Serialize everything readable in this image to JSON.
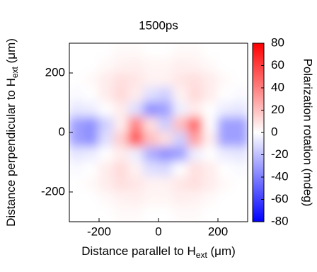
{
  "chart_data": {
    "type": "heatmap",
    "title": "1500ps",
    "xlabel": [
      "Distance parallel to H",
      "ext",
      " (μm)"
    ],
    "ylabel": [
      "Distance perpendicular to H",
      "ext",
      " (μm)"
    ],
    "colorbar_label": "Polarization rotation (mdeg)",
    "x": [
      -275,
      -225,
      -175,
      -125,
      -75,
      -25,
      25,
      75,
      125,
      175,
      225,
      275
    ],
    "y": [
      275,
      225,
      175,
      125,
      75,
      25,
      -25,
      -75,
      -125,
      -175,
      -225,
      -275
    ],
    "z": [
      [
        0,
        0,
        0,
        2,
        2,
        0,
        0,
        2,
        2,
        0,
        0,
        0
      ],
      [
        0,
        0,
        2,
        4,
        5,
        3,
        3,
        5,
        4,
        2,
        0,
        0
      ],
      [
        0,
        2,
        6,
        10,
        8,
        4,
        4,
        8,
        10,
        6,
        2,
        0
      ],
      [
        -2,
        0,
        6,
        12,
        6,
        -10,
        -15,
        4,
        12,
        6,
        0,
        -2
      ],
      [
        -8,
        -6,
        0,
        6,
        -10,
        -35,
        -30,
        -5,
        6,
        0,
        -6,
        -8
      ],
      [
        -30,
        -35,
        -15,
        5,
        40,
        10,
        -15,
        20,
        50,
        0,
        -30,
        -30
      ],
      [
        -30,
        -35,
        -10,
        15,
        55,
        20,
        10,
        -15,
        30,
        5,
        -30,
        -30
      ],
      [
        -8,
        -6,
        0,
        6,
        -5,
        -25,
        -35,
        -30,
        -5,
        0,
        -6,
        -8
      ],
      [
        -2,
        0,
        6,
        12,
        4,
        -10,
        -12,
        0,
        10,
        6,
        0,
        -2
      ],
      [
        0,
        2,
        6,
        10,
        8,
        4,
        4,
        8,
        10,
        6,
        2,
        0
      ],
      [
        0,
        0,
        2,
        4,
        5,
        3,
        3,
        5,
        4,
        2,
        0,
        0
      ],
      [
        0,
        0,
        0,
        2,
        2,
        0,
        0,
        2,
        2,
        0,
        0,
        0
      ]
    ],
    "xlim": [
      -300,
      300
    ],
    "ylim": [
      -300,
      300
    ],
    "xticks": [
      -200,
      0,
      200
    ],
    "yticks": [
      -200,
      0,
      200
    ],
    "zlim": [
      -80,
      80
    ],
    "zticks": [
      -80,
      -60,
      -40,
      -20,
      0,
      20,
      40,
      60,
      80
    ],
    "colormap": [
      "#0000ff",
      "#ffffff",
      "#ff0000"
    ]
  }
}
